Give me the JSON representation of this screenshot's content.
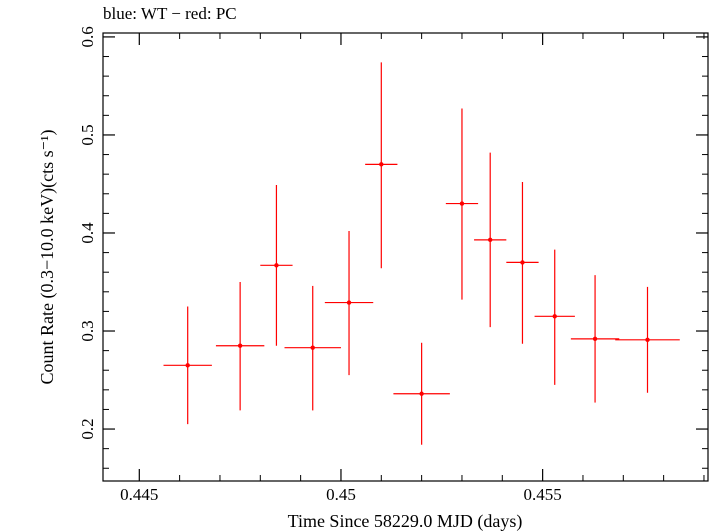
{
  "chart_data": {
    "type": "scatter",
    "title": "blue: WT − red: PC",
    "xlabel": "Time Since 58229.0 MJD (days)",
    "ylabel": "Count Rate (0.3−10.0 keV)(cts s⁻¹)",
    "xlim": [
      0.4441,
      0.4591
    ],
    "ylim": [
      0.147,
      0.604
    ],
    "xticks": [
      0.445,
      0.45,
      0.455
    ],
    "xtick_labels": [
      "0.445",
      "0.45",
      "0.455"
    ],
    "yticks": [
      0.2,
      0.3,
      0.4,
      0.5,
      0.6
    ],
    "ytick_labels": [
      "0.2",
      "0.3",
      "0.4",
      "0.5",
      "0.6"
    ],
    "grid": false,
    "colors": {
      "PC": "#ff0000",
      "axes": "#000000"
    },
    "series": [
      {
        "x": [
          0.4462,
          0.4475,
          0.4484,
          0.4493,
          0.4502,
          0.451,
          0.452,
          0.453,
          0.4537,
          0.4545,
          0.4553,
          0.4563,
          0.4576
        ],
        "xerr": [
          0.0006,
          0.0006,
          0.0004,
          0.0007,
          0.0006,
          0.0004,
          0.0007,
          0.0004,
          0.0004,
          0.0004,
          0.0005,
          0.0006,
          0.0008
        ],
        "y": [
          0.265,
          0.285,
          0.367,
          0.283,
          0.329,
          0.47,
          0.236,
          0.43,
          0.393,
          0.37,
          0.315,
          0.292,
          0.291
        ],
        "ylo": [
          0.205,
          0.219,
          0.285,
          0.219,
          0.255,
          0.364,
          0.184,
          0.332,
          0.304,
          0.287,
          0.245,
          0.227,
          0.237
        ],
        "yhi": [
          0.325,
          0.35,
          0.449,
          0.346,
          0.402,
          0.574,
          0.288,
          0.527,
          0.482,
          0.452,
          0.383,
          0.357,
          0.345
        ]
      }
    ]
  }
}
